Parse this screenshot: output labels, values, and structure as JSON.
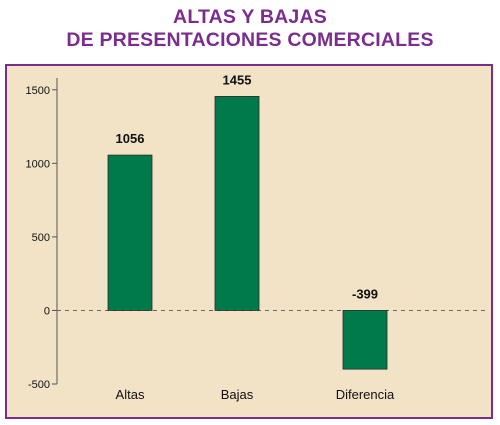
{
  "chart_data": {
    "type": "bar",
    "title_lines": [
      "ALTAS Y BAJAS",
      "DE PRESENTACIONES COMERCIALES"
    ],
    "categories": [
      "Altas",
      "Bajas",
      "Diferencia"
    ],
    "values": [
      1056,
      1455,
      -399
    ],
    "data_labels": [
      "1056",
      "1455",
      "-399"
    ],
    "yticks": [
      -500,
      0,
      500,
      1000,
      1500
    ],
    "ylim": [
      -500,
      1580
    ],
    "xlabel": "",
    "ylabel": "",
    "grid": false,
    "zero_line": "dashed",
    "bar_color": "#007a4a",
    "background_color": "#f2e2c6",
    "border_color": "#7b2d8e",
    "title_color": "#7b2d8e"
  }
}
